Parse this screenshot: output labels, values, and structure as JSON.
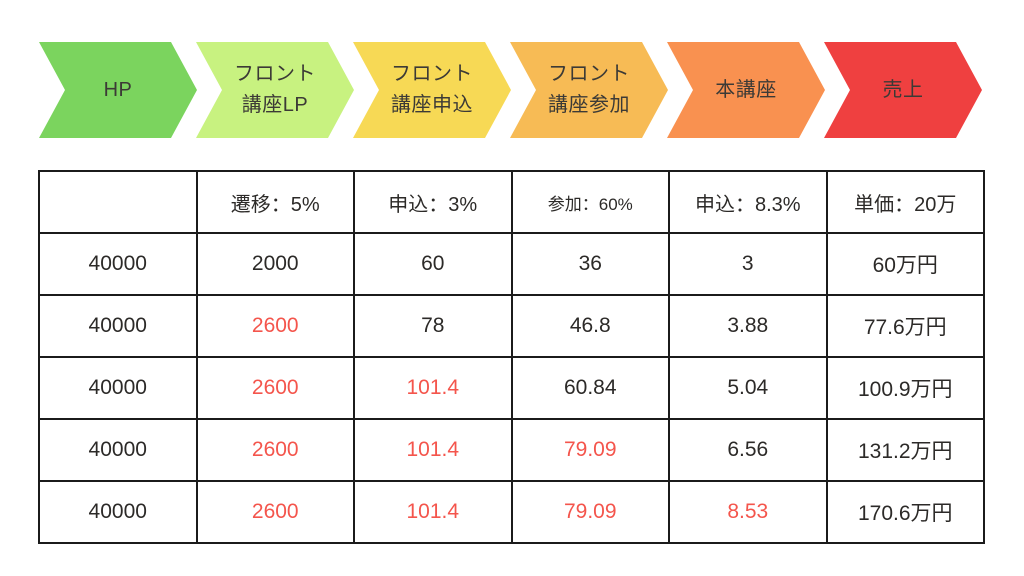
{
  "funnel": {
    "steps": [
      {
        "id": "hp",
        "lines": [
          "HP"
        ],
        "color": "#7bd45e"
      },
      {
        "id": "front-lp",
        "lines": [
          "フロント",
          "講座LP"
        ],
        "color": "#c8f280"
      },
      {
        "id": "front-apply",
        "lines": [
          "フロント",
          "講座申込"
        ],
        "color": "#f7d955"
      },
      {
        "id": "front-attend",
        "lines": [
          "フロント",
          "講座参加"
        ],
        "color": "#f7bb55"
      },
      {
        "id": "main-course",
        "lines": [
          "本講座"
        ],
        "color": "#f99150"
      },
      {
        "id": "sales",
        "lines": [
          "売上"
        ],
        "color": "#ef4040"
      }
    ],
    "text_color": "#3c3a36"
  },
  "table": {
    "headers": [
      "",
      "遷移：5%",
      "申込：3%",
      "参加：60%",
      "申込：8.3%",
      "単価：20万"
    ],
    "headers_small": [
      false,
      false,
      false,
      true,
      false,
      false
    ],
    "rows": [
      {
        "cells": [
          "40000",
          "2000",
          "60",
          "36",
          "3",
          "60万円"
        ],
        "red": [
          false,
          false,
          false,
          false,
          false,
          false
        ]
      },
      {
        "cells": [
          "40000",
          "2600",
          "78",
          "46.8",
          "3.88",
          "77.6万円"
        ],
        "red": [
          false,
          true,
          false,
          false,
          false,
          false
        ]
      },
      {
        "cells": [
          "40000",
          "2600",
          "101.4",
          "60.84",
          "5.04",
          "100.9万円"
        ],
        "red": [
          false,
          true,
          true,
          false,
          false,
          false
        ]
      },
      {
        "cells": [
          "40000",
          "2600",
          "101.4",
          "79.09",
          "6.56",
          "131.2万円"
        ],
        "red": [
          false,
          true,
          true,
          true,
          false,
          false
        ]
      },
      {
        "cells": [
          "40000",
          "2600",
          "101.4",
          "79.09",
          "8.53",
          "170.6万円"
        ],
        "red": [
          false,
          true,
          true,
          true,
          true,
          false
        ]
      }
    ],
    "red_color": "#f4554c",
    "text_color": "#2c2a28",
    "border_color": "#1b1b1b"
  }
}
